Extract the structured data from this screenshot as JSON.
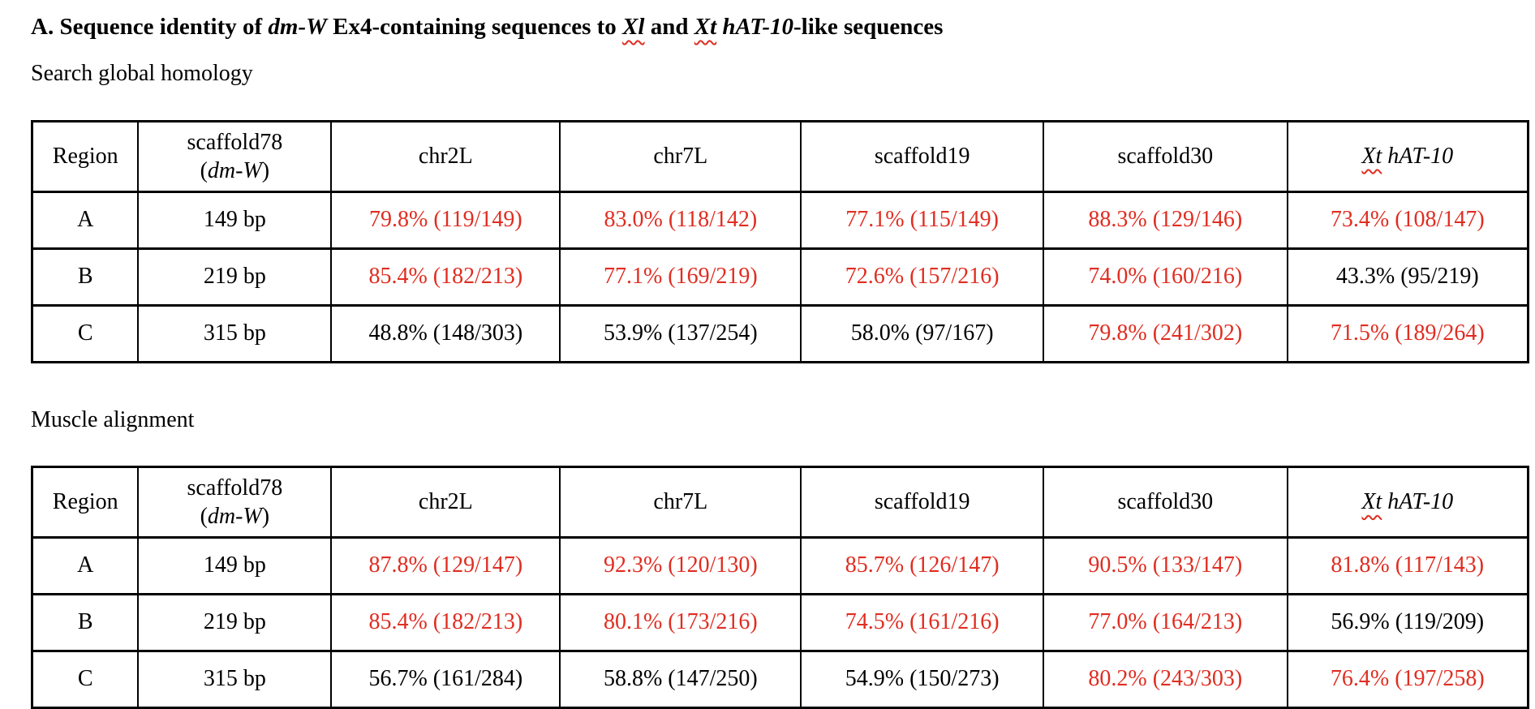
{
  "colors": {
    "accent_red": "#e02d21",
    "text": "#000000",
    "border": "#000000",
    "background": "#ffffff"
  },
  "document": {
    "title_segments": [
      {
        "t": "A. Sequence identity of "
      },
      {
        "t": "dm-W",
        "i": true
      },
      {
        "t": " Ex4-containing sequences to "
      },
      {
        "t": "Xl",
        "i": true,
        "sq": true
      },
      {
        "t": " and "
      },
      {
        "t": "Xt",
        "i": true,
        "sq": true
      },
      {
        "t": " "
      },
      {
        "t": "hAT-10",
        "i": true
      },
      {
        "t": "-like sequences"
      }
    ]
  },
  "sections": [
    {
      "id": "search-global-homology",
      "subtitle": "Search global homology",
      "table": {
        "column_headers": [
          {
            "name": "region",
            "segments": [
              {
                "t": "Region"
              }
            ]
          },
          {
            "name": "scaffold78-dm-w",
            "segments": [
              {
                "t": "scaffold78"
              },
              {
                "br": true
              },
              {
                "t": "("
              },
              {
                "t": "dm-W",
                "i": true
              },
              {
                "t": ")"
              }
            ]
          },
          {
            "name": "chr2l",
            "segments": [
              {
                "t": "chr2L"
              }
            ]
          },
          {
            "name": "chr7l",
            "segments": [
              {
                "t": "chr7L"
              }
            ]
          },
          {
            "name": "scaffold19",
            "segments": [
              {
                "t": "scaffold19"
              }
            ]
          },
          {
            "name": "scaffold30",
            "segments": [
              {
                "t": "scaffold30"
              }
            ]
          },
          {
            "name": "xt-hat-10",
            "segments": [
              {
                "t": "Xt",
                "i": true,
                "sq": true
              },
              {
                "t": " "
              },
              {
                "t": "hAT-10",
                "i": true
              }
            ]
          }
        ],
        "rows": [
          {
            "region": "A",
            "length": "149 bp",
            "cells": [
              {
                "t": "79.8% (119/149)",
                "red": true
              },
              {
                "t": "83.0% (118/142)",
                "red": true
              },
              {
                "t": "77.1% (115/149)",
                "red": true
              },
              {
                "t": "88.3% (129/146)",
                "red": true
              },
              {
                "t": "73.4% (108/147)",
                "red": true
              }
            ]
          },
          {
            "region": "B",
            "length": "219 bp",
            "cells": [
              {
                "t": "85.4% (182/213)",
                "red": true
              },
              {
                "t": "77.1% (169/219)",
                "red": true
              },
              {
                "t": "72.6% (157/216)",
                "red": true
              },
              {
                "t": "74.0% (160/216)",
                "red": true
              },
              {
                "t": "43.3% (95/219)",
                "red": false
              }
            ]
          },
          {
            "region": "C",
            "length": "315 bp",
            "cells": [
              {
                "t": "48.8% (148/303)",
                "red": false
              },
              {
                "t": "53.9% (137/254)",
                "red": false
              },
              {
                "t": "58.0% (97/167)",
                "red": false
              },
              {
                "t": "79.8% (241/302)",
                "red": true
              },
              {
                "t": "71.5% (189/264)",
                "red": true
              }
            ]
          }
        ]
      }
    },
    {
      "id": "muscle-alignment",
      "subtitle": "Muscle alignment",
      "table": {
        "column_headers": [
          {
            "name": "region",
            "segments": [
              {
                "t": "Region"
              }
            ]
          },
          {
            "name": "scaffold78-dm-w",
            "segments": [
              {
                "t": "scaffold78"
              },
              {
                "br": true
              },
              {
                "t": "("
              },
              {
                "t": "dm-W",
                "i": true
              },
              {
                "t": ")"
              }
            ]
          },
          {
            "name": "chr2l",
            "segments": [
              {
                "t": "chr2L"
              }
            ]
          },
          {
            "name": "chr7l",
            "segments": [
              {
                "t": "chr7L"
              }
            ]
          },
          {
            "name": "scaffold19",
            "segments": [
              {
                "t": "scaffold19"
              }
            ]
          },
          {
            "name": "scaffold30",
            "segments": [
              {
                "t": "scaffold30"
              }
            ]
          },
          {
            "name": "xt-hat-10",
            "segments": [
              {
                "t": "Xt",
                "i": true,
                "sq": true
              },
              {
                "t": " "
              },
              {
                "t": "hAT-10",
                "i": true
              }
            ]
          }
        ],
        "rows": [
          {
            "region": "A",
            "length": "149 bp",
            "cells": [
              {
                "t": "87.8% (129/147)",
                "red": true
              },
              {
                "t": "92.3% (120/130)",
                "red": true
              },
              {
                "t": "85.7% (126/147)",
                "red": true
              },
              {
                "t": "90.5% (133/147)",
                "red": true
              },
              {
                "t": "81.8% (117/143)",
                "red": true
              }
            ]
          },
          {
            "region": "B",
            "length": "219 bp",
            "cells": [
              {
                "t": "85.4% (182/213)",
                "red": true
              },
              {
                "t": "80.1% (173/216)",
                "red": true
              },
              {
                "t": "74.5% (161/216)",
                "red": true
              },
              {
                "t": "77.0% (164/213)",
                "red": true
              },
              {
                "t": "56.9% (119/209)",
                "red": false
              }
            ]
          },
          {
            "region": "C",
            "length": "315 bp",
            "cells": [
              {
                "t": "56.7% (161/284)",
                "red": false
              },
              {
                "t": "58.8% (147/250)",
                "red": false
              },
              {
                "t": "54.9% (150/273)",
                "red": false
              },
              {
                "t": "80.2% (243/303)",
                "red": true
              },
              {
                "t": "76.4% (197/258)",
                "red": true
              }
            ]
          }
        ]
      }
    }
  ]
}
